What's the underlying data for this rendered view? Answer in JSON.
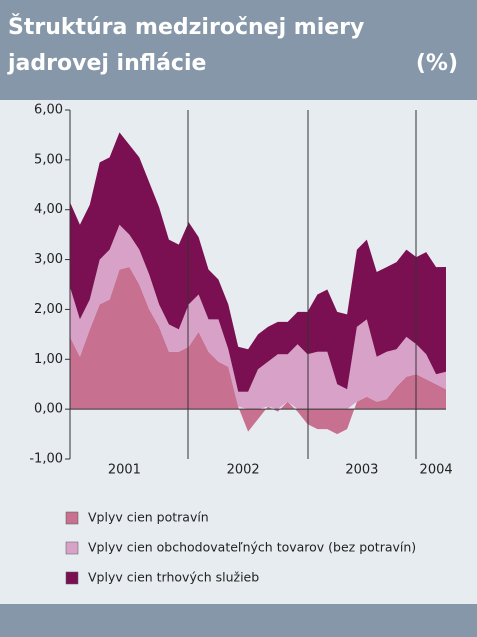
{
  "chart_data": {
    "type": "stacked_area",
    "title_lines": [
      "Štruktúra medziročnej miery",
      "jadrovej inflácie"
    ],
    "unit_label": "(%)",
    "categories": [
      null,
      null,
      null,
      null,
      null,
      null,
      null,
      null,
      null,
      null,
      null,
      null,
      null,
      null,
      null,
      null,
      null,
      null,
      null,
      null,
      null,
      null,
      null,
      null,
      null,
      null,
      null,
      null,
      null,
      null,
      null,
      null,
      null,
      null,
      null,
      null,
      null,
      null,
      null
    ],
    "year_labels": [
      "2001",
      "2002",
      "2003",
      "2004"
    ],
    "series": [
      {
        "name": "Vplyv cien potravín",
        "color": "#c8708f",
        "values": [
          1.45,
          1.05,
          1.6,
          2.1,
          2.2,
          2.8,
          2.85,
          2.5,
          2.0,
          1.65,
          1.15,
          1.15,
          1.25,
          1.55,
          1.15,
          0.95,
          0.85,
          0.05,
          -0.45,
          -0.2,
          0.05,
          -0.05,
          0.15,
          -0.05,
          -0.3,
          -0.4,
          -0.4,
          -0.5,
          -0.4,
          0.15,
          0.25,
          0.15,
          0.2,
          0.45,
          0.65,
          0.7,
          0.6,
          0.5,
          0.4
        ]
      },
      {
        "name": "Vplyv cien obchodovateľných tovarov (bez potravín)",
        "color": "#d8a2c8",
        "values": [
          1.0,
          0.75,
          0.6,
          0.9,
          1.0,
          0.9,
          0.65,
          0.7,
          0.7,
          0.45,
          0.55,
          0.45,
          0.85,
          0.75,
          0.65,
          0.85,
          0.35,
          0.3,
          0.35,
          0.8,
          0.9,
          1.1,
          0.95,
          1.3,
          1.1,
          1.15,
          1.15,
          0.5,
          0.4,
          1.5,
          1.55,
          0.9,
          0.95,
          0.75,
          0.8,
          0.6,
          0.5,
          0.2,
          0.35
        ]
      },
      {
        "name": "Vplyv cien trhových služieb",
        "color": "#7a1052",
        "values": [
          1.7,
          1.9,
          1.9,
          1.95,
          1.85,
          1.85,
          1.8,
          1.85,
          1.85,
          1.95,
          1.7,
          1.7,
          1.65,
          1.15,
          1.0,
          0.8,
          0.9,
          0.9,
          0.85,
          0.7,
          0.7,
          0.65,
          0.65,
          0.65,
          0.85,
          1.15,
          1.25,
          1.45,
          1.5,
          1.55,
          1.6,
          1.7,
          1.7,
          1.75,
          1.75,
          1.75,
          2.05,
          2.15,
          2.1
        ]
      }
    ],
    "ylim": [
      -1,
      6
    ],
    "yticks": [
      {
        "value": -1,
        "label": "-1,00"
      },
      {
        "value": 0,
        "label": "0,00"
      },
      {
        "value": 1,
        "label": "1,00"
      },
      {
        "value": 2,
        "label": "2,00"
      },
      {
        "value": 3,
        "label": "3,00"
      },
      {
        "value": 4,
        "label": "4,00"
      },
      {
        "value": 5,
        "label": "5,00"
      },
      {
        "value": 6,
        "label": "6,00"
      }
    ]
  }
}
